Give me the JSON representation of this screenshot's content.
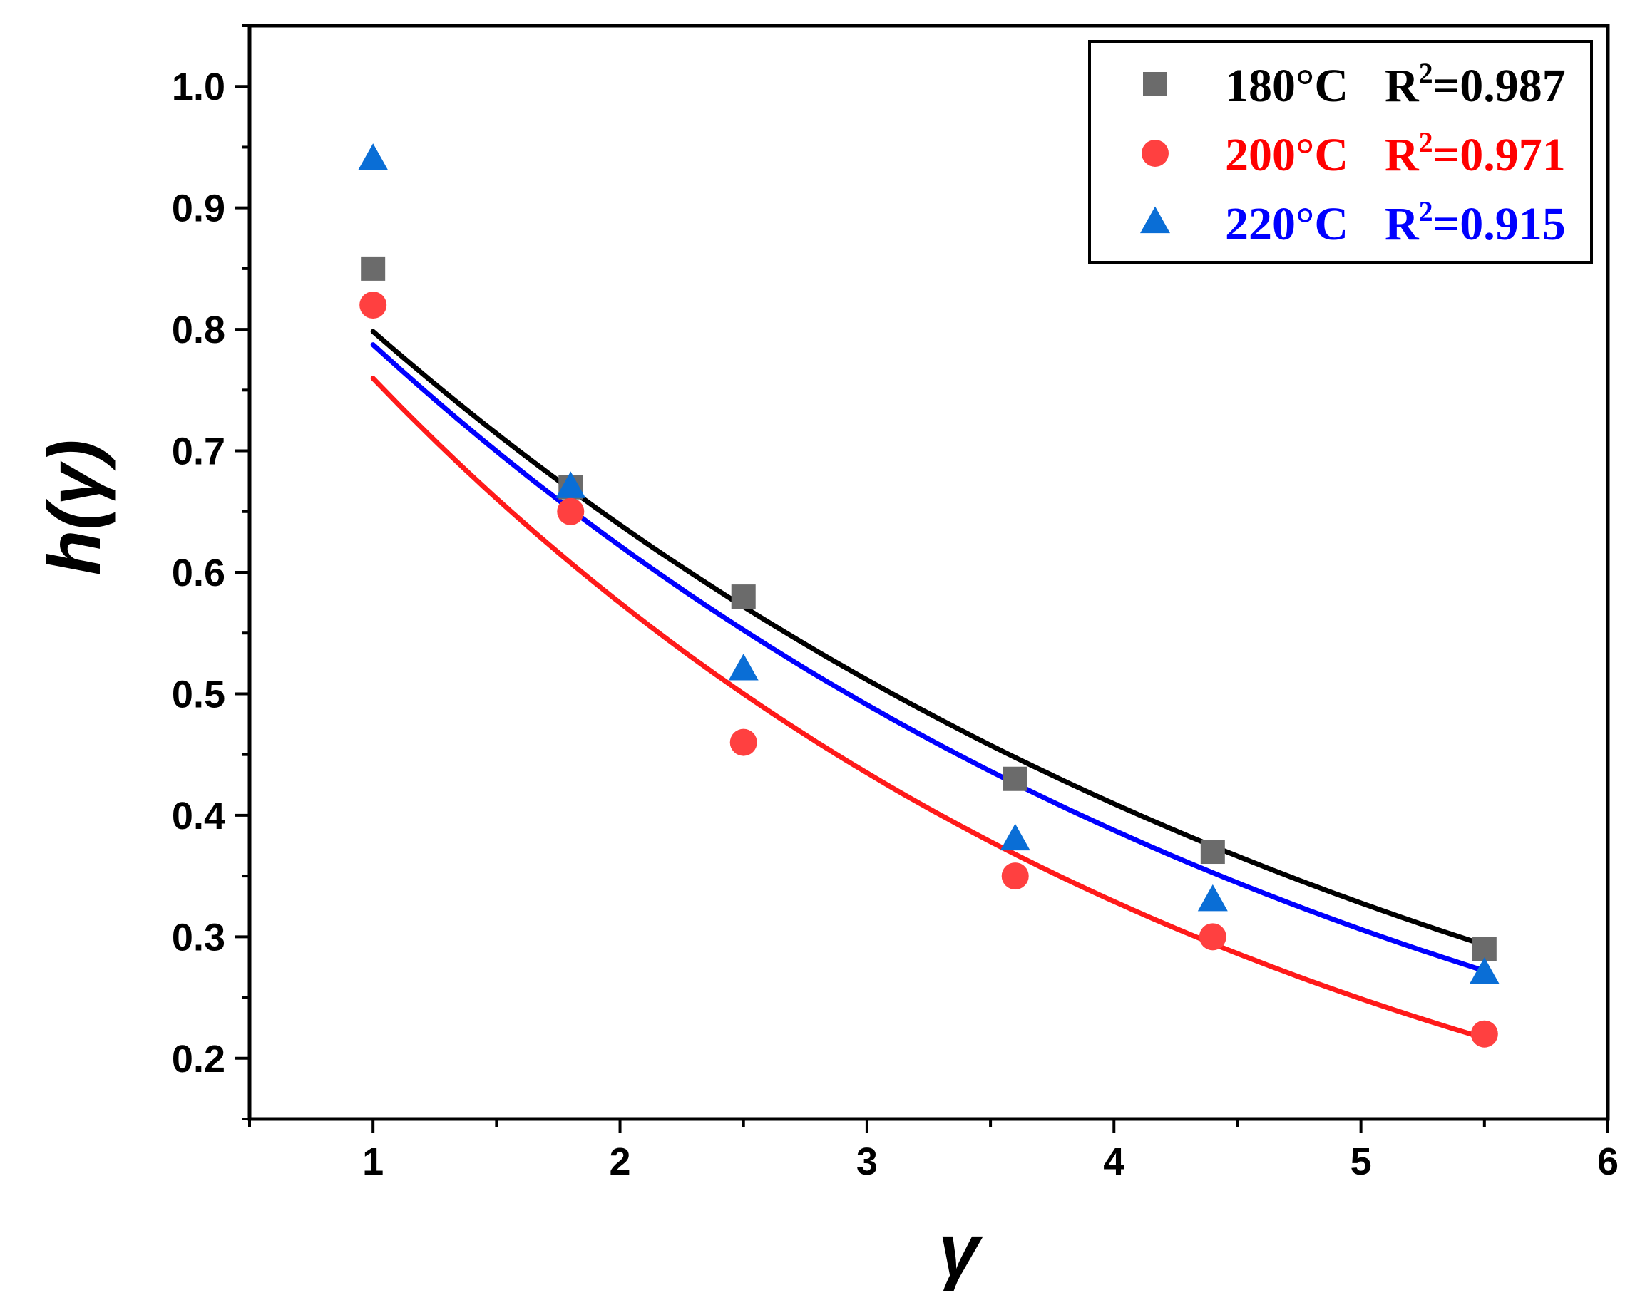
{
  "chart_data": {
    "type": "scatter",
    "title": "",
    "xlabel": "γ",
    "ylabel": "h(γ)",
    "xlim": [
      0.5,
      6
    ],
    "ylim": [
      0.15,
      1.05
    ],
    "xticks": [
      1,
      2,
      3,
      4,
      5,
      6
    ],
    "xtick_labels": [
      "1",
      "2",
      "3",
      "4",
      "5",
      "6"
    ],
    "yticks": [
      0.2,
      0.3,
      0.4,
      0.5,
      0.6,
      0.7,
      0.8,
      0.9,
      1.0
    ],
    "ytick_labels": [
      "0.2",
      "0.3",
      "0.4",
      "0.5",
      "0.6",
      "0.7",
      "0.8",
      "0.9",
      "1.0"
    ],
    "grid": false,
    "legend_position": "top-right",
    "x": [
      1.0,
      1.8,
      2.5,
      3.6,
      4.4,
      5.5
    ],
    "series": [
      {
        "name": "180°C",
        "r2_prefix": "R",
        "r2_exp": "2",
        "r2_value": "=0.987",
        "marker": "square",
        "marker_color": "#6b6b6b",
        "line_color": "#000000",
        "text_color": "#000000",
        "values": [
          0.85,
          0.67,
          0.58,
          0.43,
          0.37,
          0.29
        ],
        "fit": {
          "a": 0.9972,
          "b": 0.2225,
          "x_range": [
            1.0,
            5.5
          ]
        }
      },
      {
        "name": "200°C",
        "r2_prefix": "R",
        "r2_exp": "2",
        "r2_value": "=0.971",
        "marker": "circle",
        "marker_color": "#ff4040",
        "line_color": "#ff1a1a",
        "text_color": "#ff0000",
        "values": [
          0.82,
          0.65,
          0.46,
          0.35,
          0.3,
          0.22
        ],
        "fit": {
          "a": 1.0041,
          "b": 0.2789,
          "x_range": [
            1.0,
            5.5
          ]
        }
      },
      {
        "name": "220°C",
        "r2_prefix": "R",
        "r2_exp": "2",
        "r2_value": "=0.915",
        "marker": "triangle",
        "marker_color": "#0a6ed6",
        "line_color": "#0000ff",
        "text_color": "#0000ff",
        "values": [
          0.94,
          0.67,
          0.52,
          0.38,
          0.33,
          0.27
        ],
        "fit": {
          "a": 0.9972,
          "b": 0.2362,
          "x_range": [
            1.0,
            5.5
          ]
        }
      }
    ]
  }
}
